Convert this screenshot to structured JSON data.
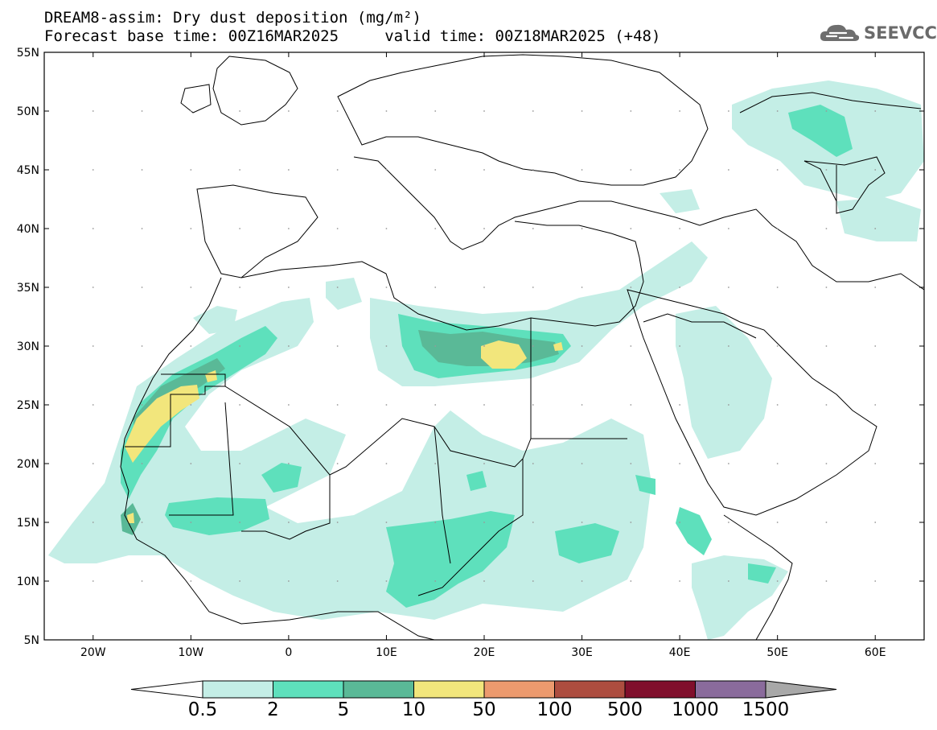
{
  "title_line1": "DREAM8-assim: Dry dust deposition (mg/m²)",
  "title_line2": "Forecast base time: 00Z16MAR2025     valid time: 00Z18MAR2025 (+48)",
  "logo_text": "SEEVCCC",
  "map": {
    "lon_range": [
      -25,
      65
    ],
    "lat_range": [
      5,
      55
    ],
    "lat_labels": [
      "55N",
      "50N",
      "45N",
      "40N",
      "35N",
      "30N",
      "25N",
      "20N",
      "15N",
      "10N",
      "5N"
    ],
    "lat_values": [
      55,
      50,
      45,
      40,
      35,
      30,
      25,
      20,
      15,
      10,
      5
    ],
    "lon_labels": [
      "20W",
      "10W",
      "0",
      "10E",
      "20E",
      "30E",
      "40E",
      "50E",
      "60E"
    ],
    "lon_values": [
      -20,
      -10,
      0,
      10,
      20,
      30,
      40,
      50,
      60
    ]
  },
  "legend": {
    "labels": [
      "0.5",
      "2",
      "5",
      "10",
      "50",
      "100",
      "500",
      "1000",
      "1500"
    ],
    "colors": [
      "#c4eee6",
      "#5ee0bc",
      "#5ab997",
      "#f2e67c",
      "#ec9a6e",
      "#ad4d3f",
      "#800f2c",
      "#8a6b9c",
      "#a8a8a8"
    ]
  }
}
